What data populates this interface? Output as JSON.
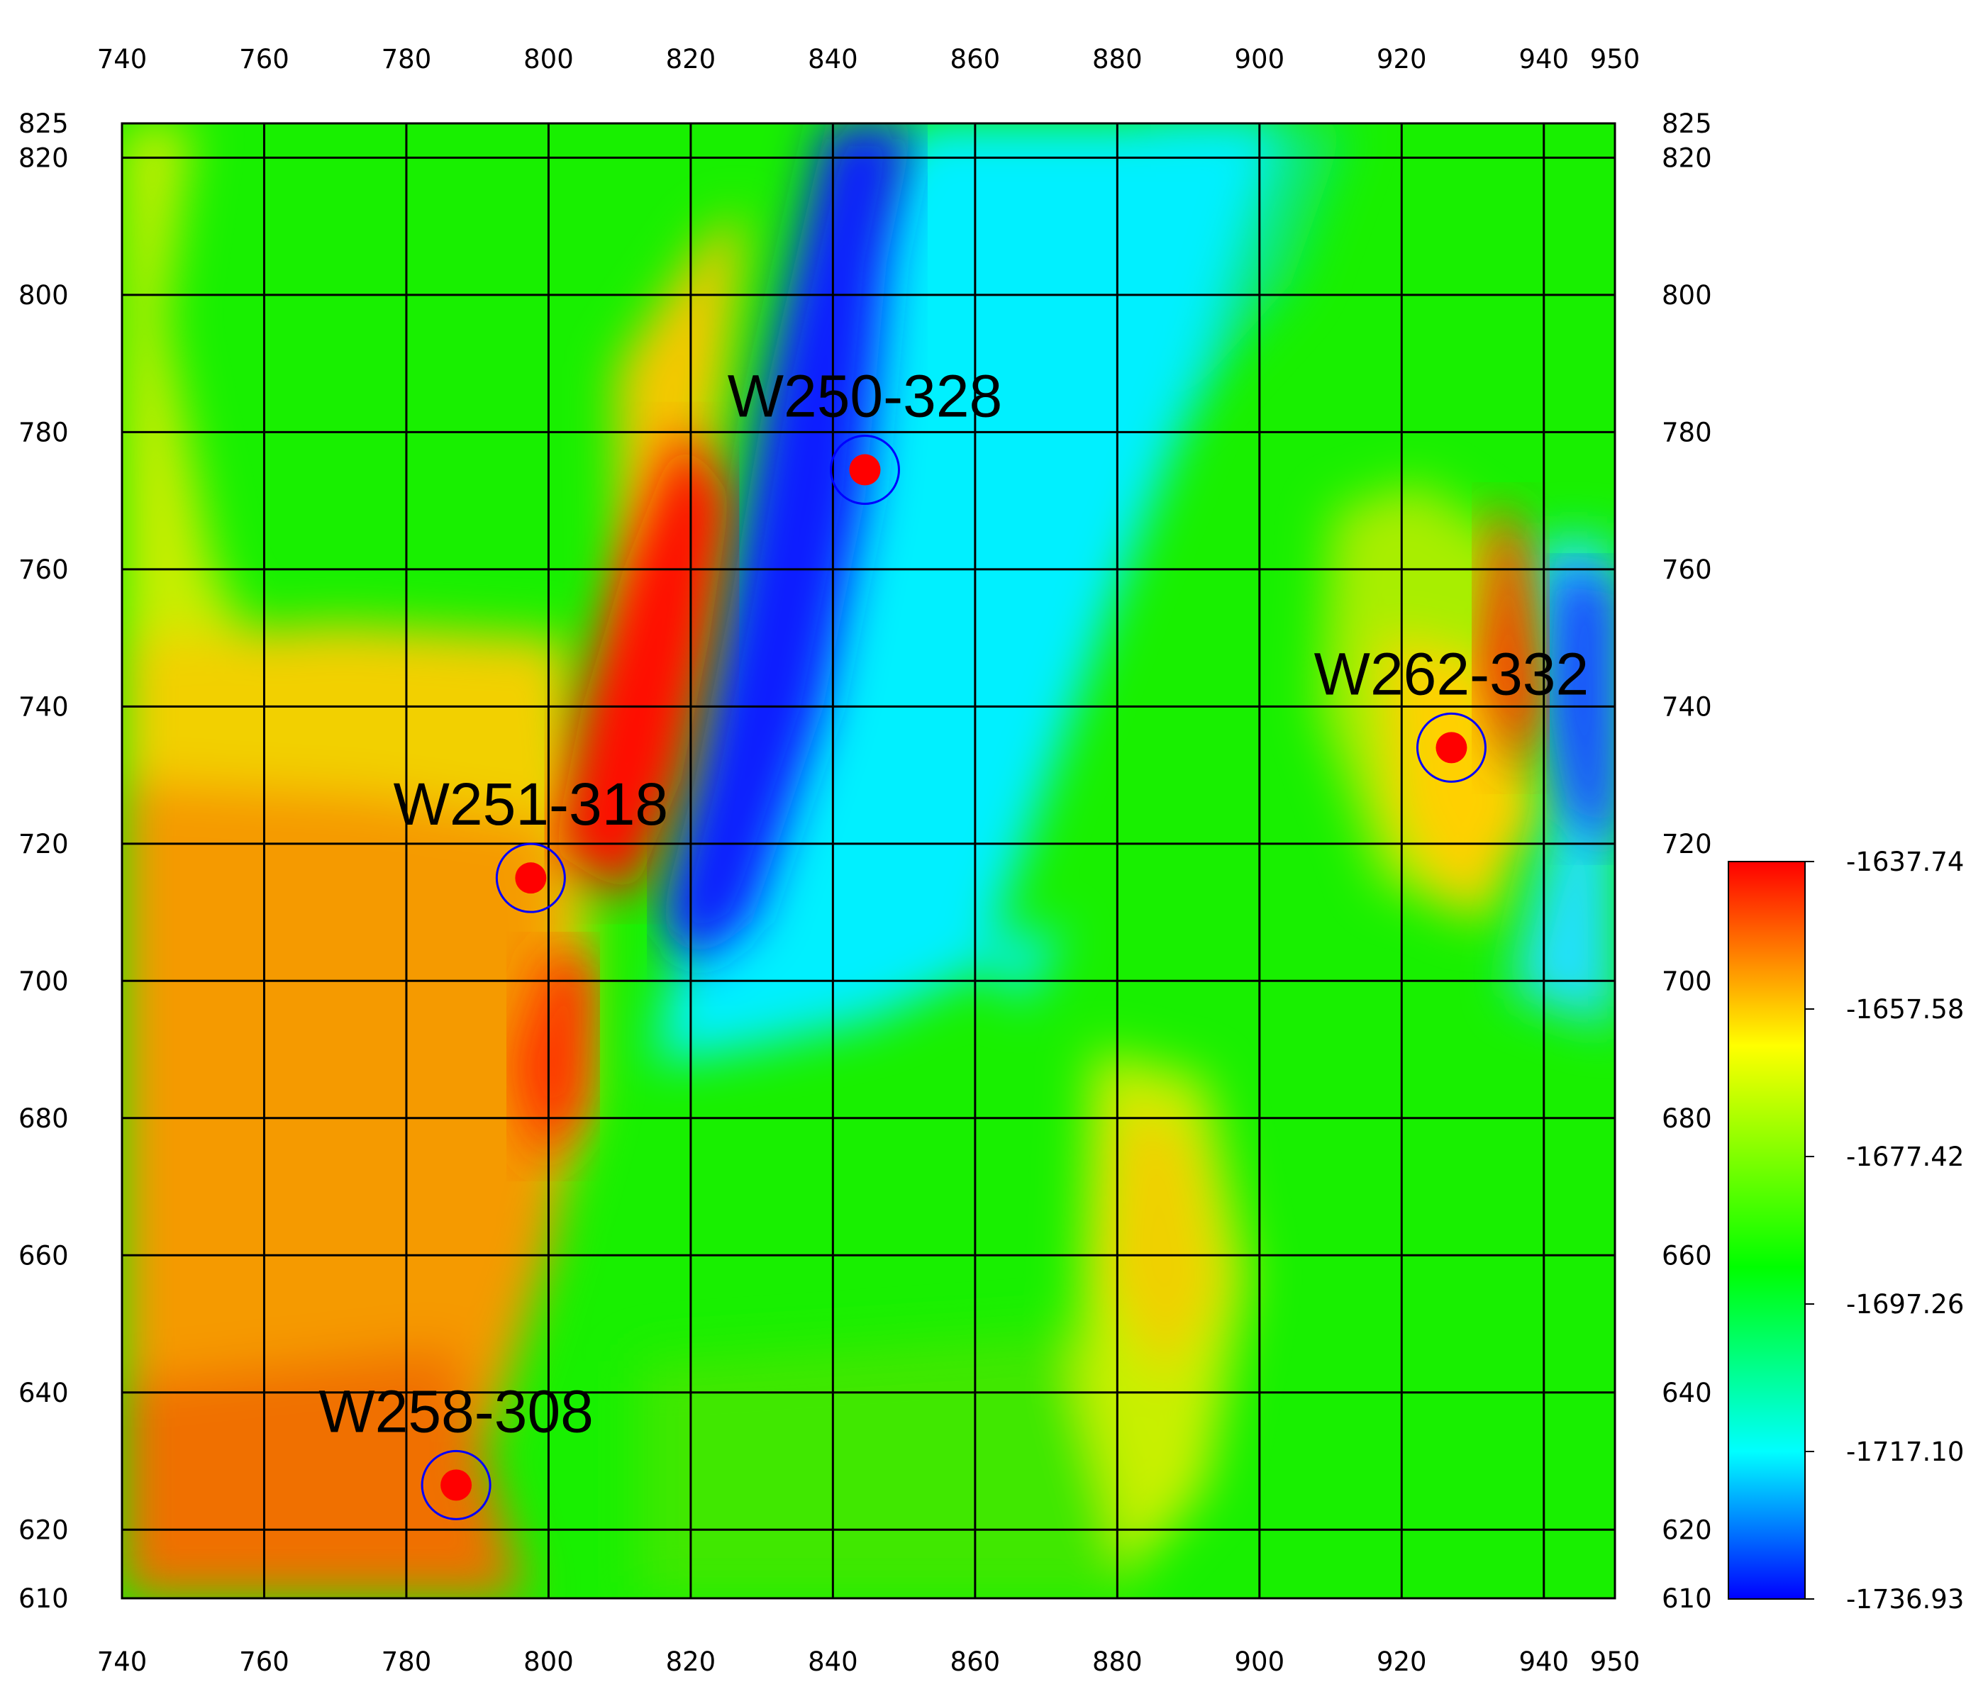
{
  "chart_data": {
    "type": "heatmap",
    "title": "",
    "xlabel": "",
    "ylabel": "",
    "xlim": [
      740,
      950
    ],
    "ylim": [
      610,
      825
    ],
    "x_ticks": [
      740,
      760,
      780,
      800,
      820,
      840,
      860,
      880,
      900,
      920,
      940,
      950
    ],
    "y_ticks": [
      825,
      820,
      800,
      780,
      760,
      740,
      720,
      700,
      680,
      660,
      640,
      620,
      610
    ],
    "grid": true,
    "colorbar": {
      "placement": "right",
      "min": -1736.93,
      "max": -1637.74,
      "ticks": [
        "-1637.74",
        "-1657.58",
        "-1677.42",
        "-1697.26",
        "-1717.10",
        "-1736.93"
      ],
      "colors": [
        "#0000ff",
        "#00ffff",
        "#00ff00",
        "#ffff00",
        "#ff0000"
      ]
    },
    "wells": [
      {
        "label": "W250-328",
        "x": 844.5,
        "y": 774.5
      },
      {
        "label": "W262-332",
        "x": 927.0,
        "y": 734.0
      },
      {
        "label": "W251-318",
        "x": 797.5,
        "y": 715.0
      },
      {
        "label": "W258-308",
        "x": 787.0,
        "y": 626.5
      }
    ]
  }
}
